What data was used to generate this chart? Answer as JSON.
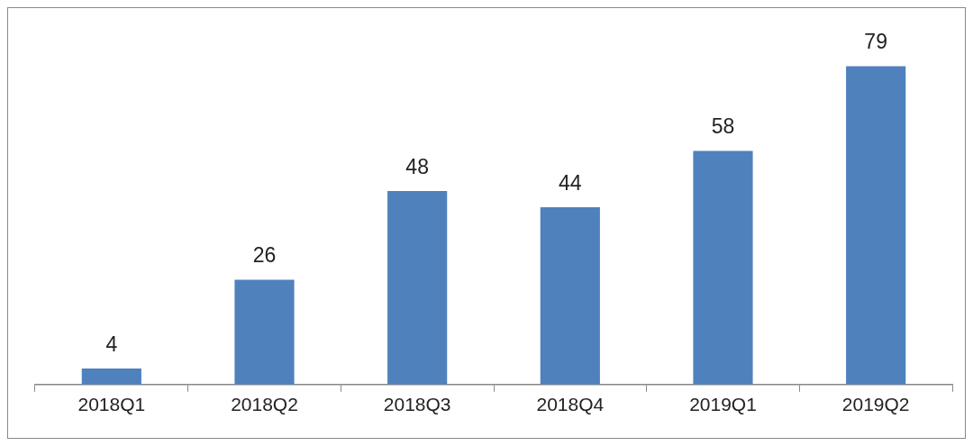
{
  "chart_data": {
    "type": "bar",
    "categories": [
      "2018Q1",
      "2018Q2",
      "2018Q3",
      "2018Q4",
      "2019Q1",
      "2019Q2"
    ],
    "values": [
      4,
      26,
      48,
      44,
      58,
      79
    ],
    "color": "#4f81bd",
    "data_labels": true,
    "legend": false,
    "grid": false
  }
}
